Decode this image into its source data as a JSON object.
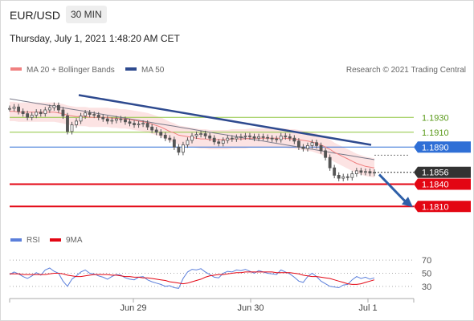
{
  "header": {
    "pair": "EUR/USD",
    "timeframe": "30 MIN",
    "timestamp": "Thursday, July 1, 2021 1:48:20 AM CET"
  },
  "legend": {
    "ma20": "MA 20 + Bollinger Bands",
    "ma50": "MA 50",
    "credit": "Research © 2021 Trading Central",
    "rsi": "RSI",
    "ma9": "9MA"
  },
  "colors": {
    "candles": "#555555",
    "ma20": "#f08080",
    "bollinger_band": "#fbdada",
    "ma50": "#7a7a8a",
    "trendline": "#2e4a8f",
    "resistance": "#8dc63f",
    "pivot": "#2f6fd6",
    "support": "#e30613",
    "current": "#333333",
    "rsi": "#5b7fdb",
    "rsi_ma": "#e30613",
    "arrow": "#2e5fa8"
  },
  "chart_data": [
    {
      "type": "line",
      "title": "EUR/USD",
      "ylim": [
        1.178,
        1.198
      ],
      "x_ticks": [
        "Jun 29",
        "Jun 30",
        "Jul 1"
      ],
      "series": [
        {
          "name": "EUR/USD",
          "values": [
            1.1942,
            1.1944,
            1.1938,
            1.1935,
            1.193,
            1.1933,
            1.1937,
            1.1935,
            1.194,
            1.1943,
            1.1946,
            1.194,
            1.1932,
            1.1911,
            1.192,
            1.1925,
            1.1932,
            1.1936,
            1.1934,
            1.1933,
            1.193,
            1.1928,
            1.1925,
            1.1926,
            1.1928,
            1.1927,
            1.1924,
            1.1922,
            1.192,
            1.1921,
            1.1922,
            1.1917,
            1.1913,
            1.191,
            1.1906,
            1.1902,
            1.19,
            1.189,
            1.1883,
            1.1893,
            1.1899,
            1.1905,
            1.1907,
            1.1908,
            1.1905,
            1.1902,
            1.1897,
            1.1895,
            1.1899,
            1.1902,
            1.1901,
            1.1903,
            1.1904,
            1.1905,
            1.1904,
            1.1902,
            1.1904,
            1.1903,
            1.1902,
            1.1901,
            1.19,
            1.1905,
            1.1904,
            1.1902,
            1.1898,
            1.189,
            1.1888,
            1.1892,
            1.1896,
            1.1892,
            1.1885,
            1.1876,
            1.1862,
            1.1852,
            1.1848,
            1.185,
            1.1849,
            1.1854,
            1.1858,
            1.1856,
            1.1857,
            1.1855,
            1.1856
          ]
        },
        {
          "name": "MA 20",
          "values": [
            1.1938,
            1.1938,
            1.1937,
            1.1937,
            1.1937,
            1.1937,
            1.1937,
            1.1937,
            1.1937,
            1.1937,
            1.1937,
            1.1936,
            1.1935,
            1.1933,
            1.1932,
            1.1931,
            1.1931,
            1.1931,
            1.193,
            1.193,
            1.193,
            1.193,
            1.193,
            1.1929,
            1.1929,
            1.1928,
            1.1928,
            1.1927,
            1.1926,
            1.1925,
            1.1924,
            1.1923,
            1.1921,
            1.1919,
            1.1917,
            1.1914,
            1.1911,
            1.1909,
            1.1906,
            1.1905,
            1.1904,
            1.1903,
            1.1902,
            1.1901,
            1.1901,
            1.19,
            1.19,
            1.19,
            1.19,
            1.19,
            1.1901,
            1.1901,
            1.1901,
            1.1901,
            1.1902,
            1.1902,
            1.1902,
            1.1902,
            1.1902,
            1.1902,
            1.1902,
            1.1902,
            1.1902,
            1.1901,
            1.1901,
            1.19,
            1.1899,
            1.1898,
            1.1897,
            1.1895,
            1.1893,
            1.189,
            1.1887,
            1.1883,
            1.188,
            1.1877,
            1.1874,
            1.1871,
            1.1868,
            1.1866,
            1.1864,
            1.1863,
            1.1862
          ]
        },
        {
          "name": "MA 50",
          "values": [
            1.1955,
            1.1954,
            1.1953,
            1.1952,
            1.1951,
            1.195,
            1.1949,
            1.1948,
            1.1947,
            1.1946,
            1.1945,
            1.1944,
            1.1943,
            1.1942,
            1.1941,
            1.194,
            1.1939,
            1.1938,
            1.1937,
            1.1936,
            1.1935,
            1.1934,
            1.1933,
            1.1932,
            1.1931,
            1.193,
            1.1929,
            1.1928,
            1.1927,
            1.1926,
            1.1925,
            1.1924,
            1.1923,
            1.1922,
            1.1921,
            1.192,
            1.1919,
            1.1918,
            1.1917,
            1.1916,
            1.1915,
            1.1914,
            1.1913,
            1.1912,
            1.1911,
            1.191,
            1.1909,
            1.1908,
            1.1907,
            1.1906,
            1.1905,
            1.1904,
            1.1903,
            1.1902,
            1.1901,
            1.19,
            1.1899,
            1.1898,
            1.1897,
            1.1896,
            1.1895,
            1.1894,
            1.1893,
            1.1892,
            1.1891,
            1.189,
            1.1889,
            1.1888,
            1.1887,
            1.1886,
            1.1885,
            1.1884,
            1.1883,
            1.1882,
            1.1881,
            1.188,
            1.1879,
            1.1878,
            1.1877,
            1.1876,
            1.1875,
            1.1874,
            1.1873
          ]
        }
      ],
      "levels": [
        {
          "label": "1.1930",
          "value": 1.193,
          "kind": "resistance"
        },
        {
          "label": "1.1910",
          "value": 1.191,
          "kind": "resistance"
        },
        {
          "label": "1.1890",
          "value": 1.189,
          "kind": "pivot"
        },
        {
          "label": "1.1856",
          "value": 1.1856,
          "kind": "current"
        },
        {
          "label": "1.1840",
          "value": 1.184,
          "kind": "support"
        },
        {
          "label": "1.1810",
          "value": 1.181,
          "kind": "support"
        }
      ]
    },
    {
      "type": "line",
      "title": "RSI",
      "ylim": [
        20,
        80
      ],
      "y_ticks": [
        "70",
        "50",
        "30"
      ],
      "series": [
        {
          "name": "RSI",
          "values": [
            48,
            52,
            49,
            45,
            42,
            46,
            51,
            47,
            55,
            58,
            53,
            50,
            38,
            30,
            41,
            46,
            52,
            55,
            50,
            49,
            46,
            44,
            41,
            45,
            48,
            47,
            43,
            41,
            40,
            44,
            45,
            40,
            37,
            35,
            33,
            30,
            31,
            28,
            27,
            42,
            52,
            56,
            55,
            57,
            52,
            48,
            44,
            43,
            50,
            53,
            52,
            55,
            54,
            56,
            53,
            50,
            54,
            52,
            50,
            49,
            48,
            55,
            52,
            49,
            44,
            38,
            36,
            45,
            50,
            45,
            38,
            34,
            30,
            29,
            28,
            32,
            33,
            40,
            45,
            42,
            44,
            41,
            43
          ]
        },
        {
          "name": "9MA",
          "values": [
            49,
            49,
            49,
            48,
            48,
            48,
            48,
            48,
            48,
            49,
            50,
            50,
            49,
            47,
            46,
            45,
            45,
            46,
            47,
            48,
            48,
            48,
            48,
            47,
            47,
            46,
            45,
            45,
            44,
            44,
            43,
            43,
            42,
            41,
            40,
            39,
            37,
            36,
            35,
            34,
            35,
            37,
            39,
            41,
            44,
            46,
            47,
            48,
            48,
            49,
            50,
            51,
            51,
            52,
            52,
            52,
            52,
            52,
            52,
            52,
            51,
            51,
            51,
            51,
            50,
            49,
            47,
            46,
            45,
            45,
            44,
            43,
            42,
            40,
            38,
            36,
            34,
            33,
            33,
            34,
            36,
            38,
            40
          ]
        }
      ]
    }
  ]
}
